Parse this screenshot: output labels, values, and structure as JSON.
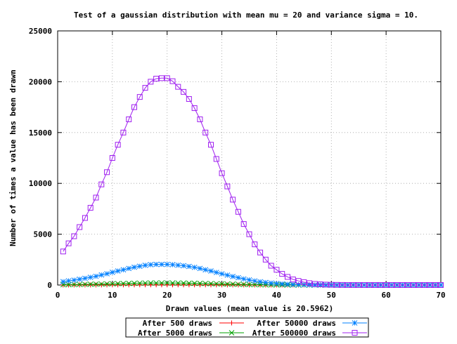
{
  "chart_data": {
    "type": "line",
    "title": "Test of a gaussian distribution with mean mu = 20 and variance sigma = 10.",
    "xlabel": "Drawn values (mean value is 20.5962)",
    "ylabel": "Number of times a value has been drawn",
    "xlim": [
      0,
      70
    ],
    "ylim": [
      0,
      25000
    ],
    "xticks": [
      0,
      10,
      20,
      30,
      40,
      50,
      60,
      70
    ],
    "yticks": [
      0,
      5000,
      10000,
      15000,
      20000,
      25000
    ],
    "grid": true,
    "legend_position": "bottom",
    "x": [
      1,
      2,
      3,
      4,
      5,
      6,
      7,
      8,
      9,
      10,
      11,
      12,
      13,
      14,
      15,
      16,
      17,
      18,
      19,
      20,
      21,
      22,
      23,
      24,
      25,
      26,
      27,
      28,
      29,
      30,
      31,
      32,
      33,
      34,
      35,
      36,
      37,
      38,
      39,
      40,
      41,
      42,
      43,
      44,
      45,
      46,
      47,
      48,
      49,
      50,
      51,
      52,
      53,
      54,
      55,
      56,
      57,
      58,
      59,
      60,
      61,
      62,
      63,
      64,
      65,
      66,
      67,
      68,
      69,
      70
    ],
    "series": [
      {
        "name": "After 500 draws",
        "color": "#ff0000",
        "marker": "plus",
        "values": [
          4,
          5,
          6,
          7,
          8,
          9,
          10,
          11,
          12,
          14,
          15,
          16,
          17,
          18,
          19,
          20,
          20,
          20,
          20,
          20,
          20,
          20,
          19,
          19,
          18,
          17,
          16,
          15,
          14,
          13,
          11,
          10,
          9,
          8,
          7,
          6,
          5,
          4,
          3,
          3,
          2,
          2,
          1,
          1,
          1,
          1,
          0,
          0,
          0,
          0,
          0,
          0,
          0,
          0,
          0,
          0,
          0,
          0,
          0,
          0,
          0,
          0,
          0,
          0,
          0,
          0,
          0,
          0,
          0,
          0
        ]
      },
      {
        "name": "After 5000 draws",
        "color": "#00a000",
        "marker": "x",
        "values": [
          33,
          41,
          48,
          57,
          66,
          76,
          86,
          99,
          111,
          125,
          138,
          150,
          163,
          175,
          185,
          194,
          200,
          203,
          203,
          203,
          200,
          195,
          190,
          183,
          174,
          163,
          150,
          138,
          124,
          110,
          97,
          84,
          72,
          60,
          50,
          40,
          32,
          25,
          19,
          15,
          11,
          8,
          5,
          4,
          3,
          2,
          1,
          1,
          0,
          0,
          0,
          0,
          0,
          0,
          0,
          0,
          0,
          0,
          0,
          0,
          0,
          0,
          0,
          0,
          0,
          0,
          0,
          0,
          0,
          0
        ]
      },
      {
        "name": "After 50000 draws",
        "color": "#0080ff",
        "marker": "star",
        "values": [
          330,
          410,
          480,
          570,
          660,
          760,
          860,
          990,
          1110,
          1250,
          1380,
          1500,
          1630,
          1750,
          1850,
          1940,
          2000,
          2030,
          2030,
          2030,
          2000,
          1950,
          1900,
          1830,
          1740,
          1630,
          1500,
          1380,
          1240,
          1100,
          970,
          840,
          720,
          600,
          500,
          400,
          320,
          250,
          190,
          150,
          110,
          80,
          50,
          40,
          30,
          20,
          10,
          10,
          0,
          0,
          0,
          0,
          0,
          0,
          0,
          0,
          0,
          0,
          0,
          0,
          0,
          0,
          0,
          0,
          0,
          0,
          0,
          0,
          0,
          0
        ]
      },
      {
        "name": "After 500000 draws",
        "color": "#a020f0",
        "marker": "square",
        "values": [
          3300,
          4100,
          4800,
          5700,
          6600,
          7600,
          8600,
          9900,
          11100,
          12500,
          13800,
          15000,
          16300,
          17500,
          18500,
          19400,
          20000,
          20300,
          20350,
          20350,
          20050,
          19500,
          19000,
          18300,
          17400,
          16300,
          15000,
          13800,
          12400,
          11000,
          9700,
          8400,
          7200,
          6000,
          5000,
          4000,
          3200,
          2500,
          1900,
          1500,
          1100,
          800,
          550,
          400,
          280,
          180,
          110,
          70,
          40,
          25,
          15,
          8,
          4,
          2,
          1,
          1,
          0,
          0,
          0,
          0,
          0,
          0,
          0,
          0,
          0,
          0,
          0,
          0,
          0,
          0
        ]
      }
    ]
  }
}
